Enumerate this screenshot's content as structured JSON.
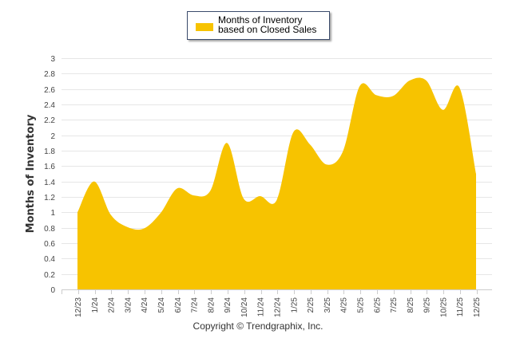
{
  "chart_data": {
    "type": "area",
    "title": "",
    "xlabel": "",
    "ylabel": "Months of Inventory",
    "ylim": [
      0,
      3
    ],
    "yticks": [
      "0",
      "0.2",
      "0.4",
      "0.6",
      "0.8",
      "1",
      "1.2",
      "1.4",
      "1.6",
      "1.8",
      "2",
      "2.2",
      "2.4",
      "2.6",
      "2.8",
      "3"
    ],
    "ytick_values": [
      0,
      0.2,
      0.4,
      0.6,
      0.8,
      1,
      1.2,
      1.4,
      1.6,
      1.8,
      2,
      2.2,
      2.4,
      2.6,
      2.8,
      3
    ],
    "grid": true,
    "legend_position": "top-center",
    "categories": [
      "12/23",
      "1/24",
      "2/24",
      "3/24",
      "4/24",
      "5/24",
      "6/24",
      "7/24",
      "8/24",
      "9/24",
      "10/24",
      "11/24",
      "12/24",
      "1/25",
      "2/25",
      "3/25",
      "4/25",
      "5/25",
      "6/25",
      "7/25",
      "8/25",
      "9/25",
      "10/25",
      "11/25",
      "12/25"
    ],
    "series": [
      {
        "name": "Months of Inventory based on Closed Sales",
        "color": "#F7C300",
        "values": [
          1.0,
          1.4,
          0.97,
          0.81,
          0.79,
          0.99,
          1.31,
          1.22,
          1.28,
          1.9,
          1.18,
          1.21,
          1.16,
          2.04,
          1.88,
          1.62,
          1.8,
          2.64,
          2.52,
          2.51,
          2.71,
          2.71,
          2.33,
          2.62,
          1.5
        ]
      }
    ]
  },
  "legend": {
    "label": "Months of Inventory based on Closed Sales"
  },
  "footer": {
    "copyright": "Copyright © Trendgraphix, Inc."
  }
}
